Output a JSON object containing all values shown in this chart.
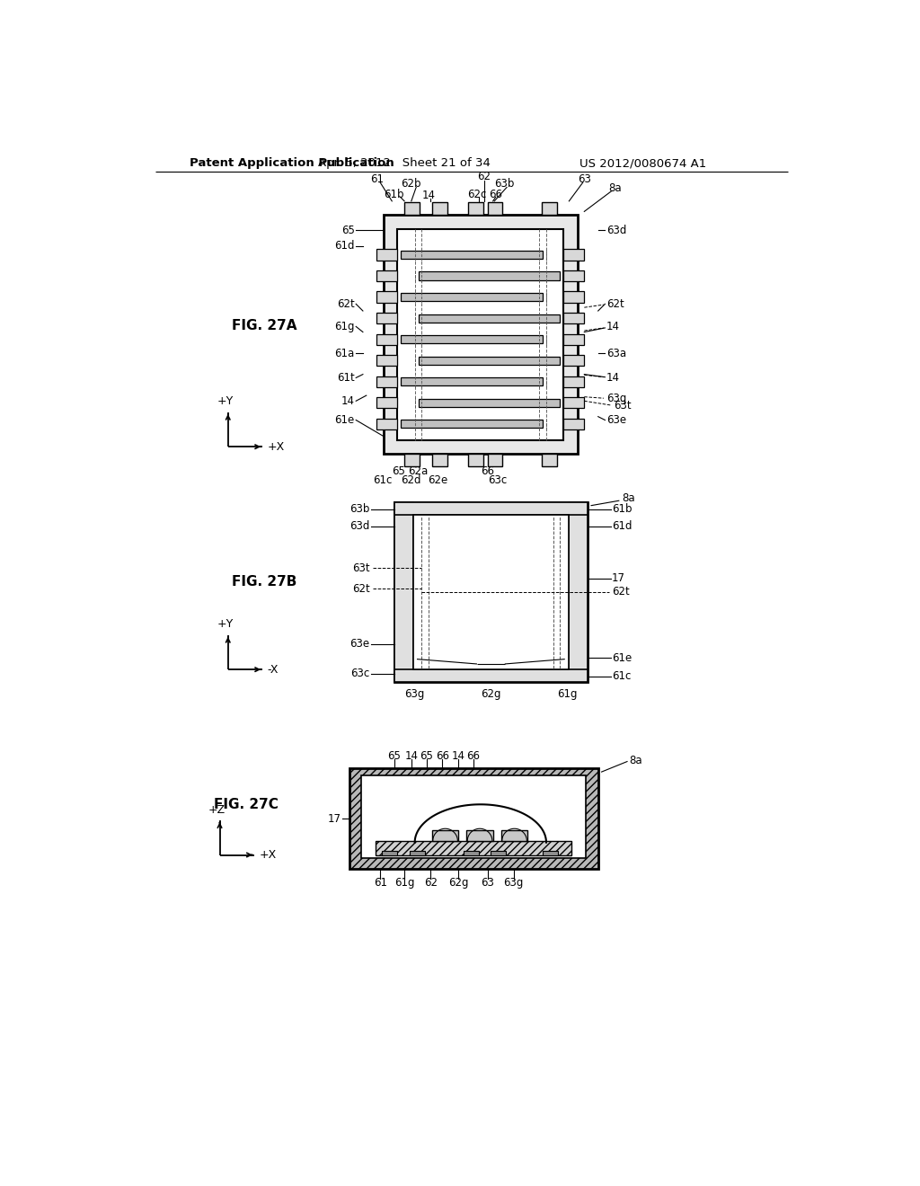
{
  "header_left": "Patent Application Publication",
  "header_mid": "Apr. 5, 2012   Sheet 21 of 34",
  "header_right": "US 2012/0080674 A1",
  "bg_color": "#ffffff",
  "line_color": "#000000"
}
